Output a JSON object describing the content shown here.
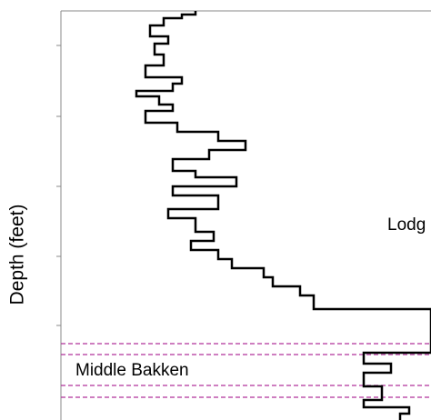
{
  "chart_data": {
    "type": "step-log",
    "y_label": "Depth (feet)",
    "annotations": [
      "Lodg",
      "Middle Bakken"
    ],
    "depth": [
      0,
      4,
      4,
      8,
      8,
      16,
      16,
      28,
      28,
      36,
      36,
      48,
      48,
      60,
      60,
      73,
      73,
      80,
      80,
      88,
      88,
      94,
      94,
      103,
      103,
      110,
      110,
      123,
      123,
      133,
      133,
      143,
      143,
      153,
      153,
      163,
      163,
      176,
      176,
      183,
      183,
      193,
      193,
      203,
      203,
      218,
      218,
      228,
      228,
      243,
      243,
      253,
      253,
      263,
      263,
      273,
      273,
      283,
      283,
      293,
      293,
      303,
      303,
      313,
      313,
      328,
      328,
      376,
      376,
      388,
      388,
      398,
      398,
      413,
      413,
      428,
      428,
      436,
      436,
      443,
      443,
      450
    ],
    "values": [
      148,
      148,
      133,
      133,
      113,
      113,
      98,
      98,
      118,
      118,
      103,
      103,
      113,
      113,
      93,
      93,
      133,
      133,
      123,
      123,
      83,
      83,
      108,
      108,
      123,
      123,
      93,
      93,
      128,
      128,
      173,
      173,
      203,
      203,
      163,
      163,
      123,
      123,
      148,
      148,
      193,
      193,
      123,
      123,
      173,
      173,
      118,
      118,
      148,
      148,
      168,
      168,
      143,
      143,
      173,
      173,
      188,
      188,
      223,
      223,
      233,
      233,
      263,
      263,
      278,
      278,
      407,
      407,
      333,
      333,
      363,
      363,
      333,
      333,
      353,
      353,
      333,
      333,
      383,
      383,
      373,
      373
    ],
    "color": "#000000",
    "boundaries": [
      366,
      378,
      412,
      425
    ],
    "boundary_color": "#b0329b",
    "xlim": [
      0,
      407
    ],
    "ylim": [
      0,
      450
    ],
    "yticks": [
      38,
      116,
      193,
      270,
      346
    ]
  }
}
